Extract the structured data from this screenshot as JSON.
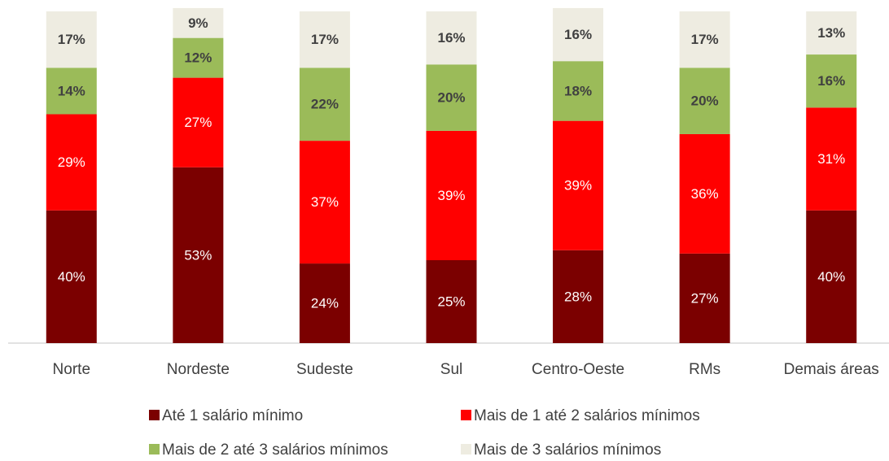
{
  "chart_data": {
    "type": "stacked_bar",
    "categories": [
      "Norte",
      "Nordeste",
      "Sudeste",
      "Sul",
      "Centro-Oeste",
      "RMs",
      "Demais áreas"
    ],
    "ylim": [
      0,
      100
    ],
    "series": [
      {
        "name": "Até 1 salário mínimo",
        "color": "#7b0000",
        "values": [
          40,
          53,
          24,
          25,
          28,
          27,
          40
        ],
        "value_labels": [
          "40%",
          "53%",
          "24%",
          "25%",
          "28%",
          "27%",
          "40%"
        ]
      },
      {
        "name": "Mais de 1 até 2 salários mínimos",
        "color": "#ff0000",
        "values": [
          29,
          27,
          37,
          39,
          39,
          36,
          31
        ],
        "value_labels": [
          "29%",
          "27%",
          "37%",
          "39%",
          "39%",
          "36%",
          "31%"
        ]
      },
      {
        "name": "Mais de 2 até 3 salários mínimos",
        "color": "#9bbb59",
        "values": [
          14,
          12,
          22,
          20,
          18,
          20,
          16
        ],
        "value_labels": [
          "14%",
          "12%",
          "22%",
          "20%",
          "18%",
          "20%",
          "16%"
        ]
      },
      {
        "name": "Mais de 3 salários mínimos",
        "color": "#eeece1",
        "values": [
          17,
          9,
          17,
          16,
          16,
          17,
          13
        ],
        "value_labels": [
          "17%",
          "9%",
          "17%",
          "16%",
          "16%",
          "17%",
          "13%"
        ]
      }
    ]
  }
}
